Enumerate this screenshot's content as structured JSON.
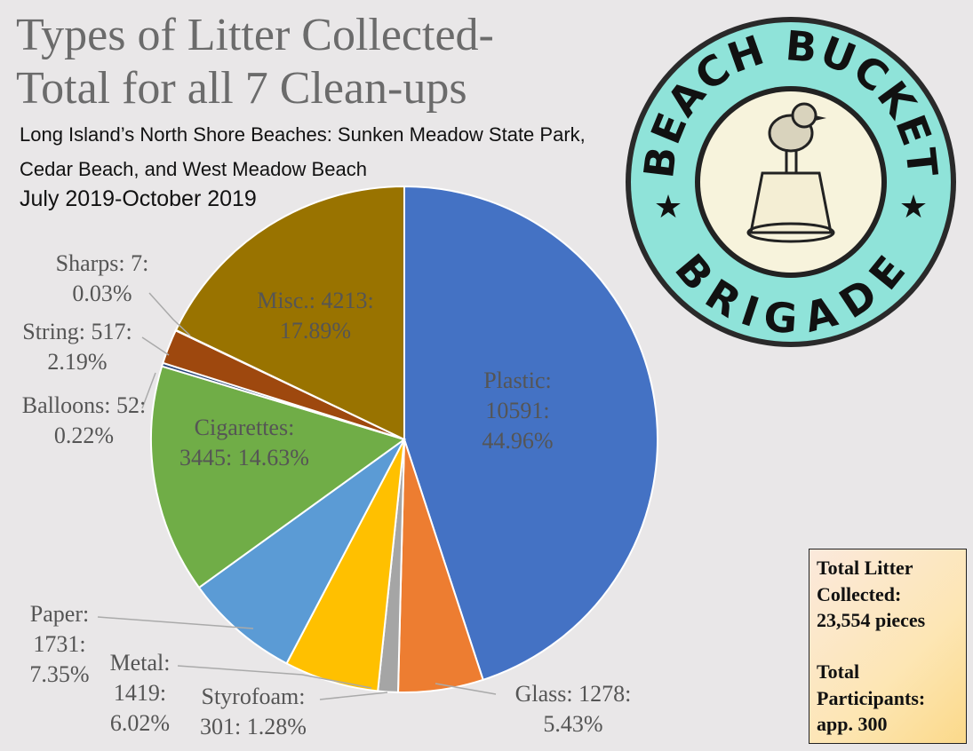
{
  "chart_data": {
    "type": "pie",
    "title": "Types of  Litter Collected-",
    "title_line2": "Total for all 7 Clean-ups",
    "subtitle": "Long Island’s North Shore Beaches: Sunken Meadow State Park, Cedar Beach, and West Meadow Beach",
    "date_range": "July 2019-October 2019",
    "categories": [
      "Plastic:",
      "Glass:",
      "Styrofoam:",
      "Metal:",
      "Paper:",
      "Cigarettes:",
      "Balloons:",
      "String:",
      "Sharps:",
      "Misc.:"
    ],
    "values": [
      10591,
      1278,
      301,
      1419,
      1731,
      3445,
      52,
      517,
      7,
      4213
    ],
    "value_labels": [
      "10591: 44.96%",
      "1278: 5.43%",
      "301: 1.28%",
      "1419: 6.02%",
      "1731: 7.35%",
      "3445: 14.63%",
      "52: 0.22%",
      "517: 2.19%",
      "7: 0.03%",
      "4213: 17.89%"
    ],
    "colors": [
      "#4472c4",
      "#ed7d31",
      "#a5a5a5",
      "#ffc000",
      "#5b9bd5",
      "#70ad47",
      "#264478",
      "#9e480e",
      "#636363",
      "#997300"
    ],
    "logo_top": "BEACH BUCKET",
    "logo_bottom": "BRIGADE",
    "summary": {
      "litter_heading": "Total Litter Collected:",
      "litter_value": "23,554 pieces",
      "participants_heading": "Total Participants:",
      "participants_value": "app. 300"
    }
  }
}
